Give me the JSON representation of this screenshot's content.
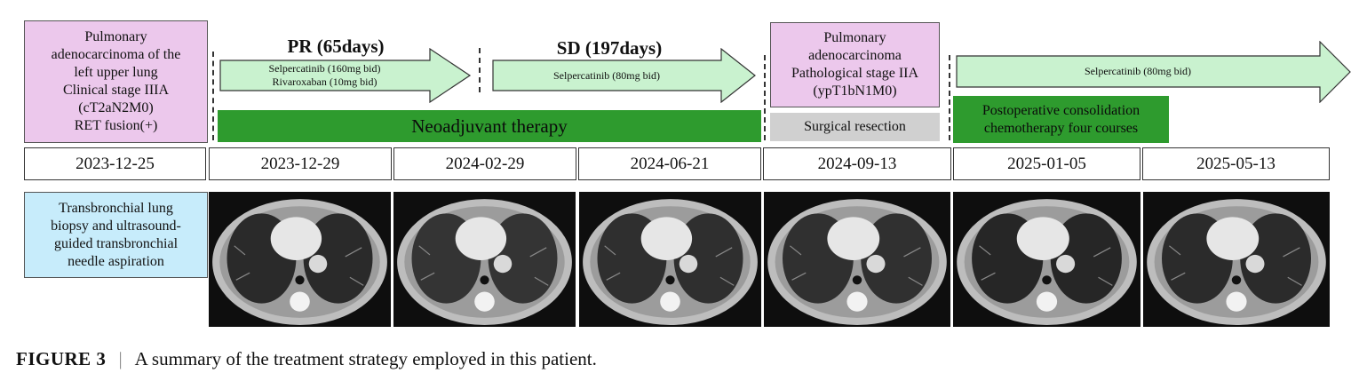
{
  "colors": {
    "diagnosis_box": "#ecc8ec",
    "arrow_fill": "#c9f2cf",
    "therapy_bar": "#2e9b2e",
    "surgery_bar": "#d0d0d0",
    "biopsy_box": "#c7ecfb"
  },
  "diagnosis": {
    "lines": [
      "Pulmonary",
      "adenocarcinoma of the",
      "left upper lung",
      "Clinical stage IIIA",
      "(cT2aN2M0)",
      "RET fusion(+)"
    ]
  },
  "phases": {
    "pr": "PR (65days)",
    "sd": "SD (197days)"
  },
  "arrows": {
    "first": [
      "Selpercatinib (160mg bid)",
      "Rivaroxaban  (10mg bid)"
    ],
    "second": [
      "Selpercatinib (80mg bid)"
    ],
    "third": [
      "Selpercatinib (80mg bid)"
    ]
  },
  "pathology": {
    "lines": [
      "Pulmonary",
      "adenocarcinoma",
      "Pathological stage IIA",
      "(ypT1bN1M0)"
    ]
  },
  "bars": {
    "neoadjuvant": "Neoadjuvant therapy",
    "surgery": "Surgical resection",
    "postop": [
      "Postoperative consolidation",
      "chemotherapy four courses"
    ]
  },
  "dates": [
    "2023-12-25",
    "2023-12-29",
    "2024-02-29",
    "2024-06-21",
    "2024-09-13",
    "2025-01-05",
    "2025-05-13"
  ],
  "biopsy": {
    "lines": [
      "Transbronchial lung",
      "biopsy and ultrasound-",
      "guided transbronchial",
      "needle aspiration"
    ]
  },
  "ct_images": [
    {
      "date": "2023-12-29"
    },
    {
      "date": "2024-02-29"
    },
    {
      "date": "2024-06-21"
    },
    {
      "date": "2024-09-13"
    },
    {
      "date": "2025-01-05"
    },
    {
      "date": "2025-05-13"
    }
  ],
  "caption": {
    "label": "FIGURE 3",
    "separator": "|",
    "text": "A summary of the treatment strategy employed in this patient."
  }
}
